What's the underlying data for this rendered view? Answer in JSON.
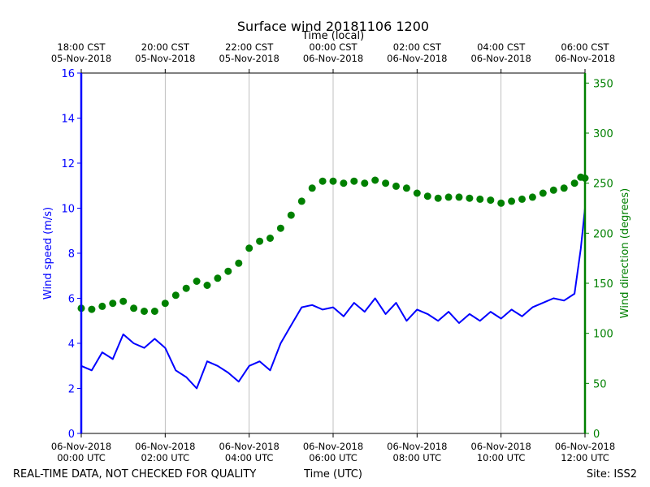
{
  "chart_data": {
    "type": "line",
    "title": "Surface wind 20181106 1200",
    "top_axis_label": "Time (local)",
    "xlabel": "Time (UTC)",
    "ylabel_left": "Wind speed (m/s)",
    "ylabel_right": "Wind direction (degrees)",
    "footer_left": "REAL-TIME DATA, NOT CHECKED FOR QUALITY",
    "footer_right": "Site: ISS2",
    "x_range_hours": [
      0,
      12
    ],
    "ylim_left": [
      0,
      16
    ],
    "ylim_right": [
      0,
      360
    ],
    "yticks_left": [
      "0",
      "2",
      "4",
      "6",
      "8",
      "10",
      "12",
      "14",
      "16"
    ],
    "yticks_right": [
      "0",
      "50",
      "100",
      "150",
      "200",
      "250",
      "300",
      "350"
    ],
    "xticks_bottom": [
      {
        "hour": 0,
        "line1": "06-Nov-2018",
        "line2": "00:00 UTC"
      },
      {
        "hour": 2,
        "line1": "06-Nov-2018",
        "line2": "02:00 UTC"
      },
      {
        "hour": 4,
        "line1": "06-Nov-2018",
        "line2": "04:00 UTC"
      },
      {
        "hour": 6,
        "line1": "06-Nov-2018",
        "line2": "06:00 UTC"
      },
      {
        "hour": 8,
        "line1": "06-Nov-2018",
        "line2": "08:00 UTC"
      },
      {
        "hour": 10,
        "line1": "06-Nov-2018",
        "line2": "10:00 UTC"
      },
      {
        "hour": 12,
        "line1": "06-Nov-2018",
        "line2": "12:00 UTC"
      }
    ],
    "xticks_top": [
      {
        "hour": 0,
        "line1": "18:00 CST",
        "line2": "05-Nov-2018"
      },
      {
        "hour": 2,
        "line1": "20:00 CST",
        "line2": "05-Nov-2018"
      },
      {
        "hour": 4,
        "line1": "22:00 CST",
        "line2": "05-Nov-2018"
      },
      {
        "hour": 6,
        "line1": "00:00 CST",
        "line2": "06-Nov-2018"
      },
      {
        "hour": 8,
        "line1": "02:00 CST",
        "line2": "06-Nov-2018"
      },
      {
        "hour": 10,
        "line1": "04:00 CST",
        "line2": "06-Nov-2018"
      },
      {
        "hour": 12,
        "line1": "06:00 CST",
        "line2": "06-Nov-2018"
      }
    ],
    "series": [
      {
        "name": "Wind speed (m/s)",
        "axis": "left",
        "style": "line",
        "color": "#0000ff",
        "hours": [
          0,
          0.25,
          0.5,
          0.75,
          1,
          1.25,
          1.5,
          1.75,
          2,
          2.25,
          2.5,
          2.75,
          3,
          3.25,
          3.5,
          3.75,
          4,
          4.25,
          4.5,
          4.75,
          5,
          5.25,
          5.5,
          5.75,
          6,
          6.25,
          6.5,
          6.75,
          7,
          7.25,
          7.5,
          7.75,
          8,
          8.25,
          8.5,
          8.75,
          9,
          9.25,
          9.5,
          9.75,
          10,
          10.25,
          10.5,
          10.75,
          11,
          11.25,
          11.5,
          11.75,
          11.9,
          12
        ],
        "values": [
          3.0,
          2.8,
          3.6,
          3.3,
          4.4,
          4.0,
          3.8,
          4.2,
          3.8,
          2.8,
          2.5,
          2.0,
          3.2,
          3.0,
          2.7,
          2.3,
          3.0,
          3.2,
          2.8,
          4.0,
          4.8,
          5.6,
          5.7,
          5.5,
          5.6,
          5.2,
          5.8,
          5.4,
          6.0,
          5.3,
          5.8,
          5.0,
          5.5,
          5.3,
          5.0,
          5.4,
          4.9,
          5.3,
          5.0,
          5.4,
          5.1,
          5.5,
          5.2,
          5.6,
          5.8,
          6.0,
          5.9,
          6.2,
          8.2,
          10.0
        ]
      },
      {
        "name": "Wind direction (degrees)",
        "axis": "right",
        "style": "dots",
        "color": "#008000",
        "hours": [
          0,
          0.25,
          0.5,
          0.75,
          1,
          1.25,
          1.5,
          1.75,
          2,
          2.25,
          2.5,
          2.75,
          3,
          3.25,
          3.5,
          3.75,
          4,
          4.25,
          4.5,
          4.75,
          5,
          5.25,
          5.5,
          5.75,
          6,
          6.25,
          6.5,
          6.75,
          7,
          7.25,
          7.5,
          7.75,
          8,
          8.25,
          8.5,
          8.75,
          9,
          9.25,
          9.5,
          9.75,
          10,
          10.25,
          10.5,
          10.75,
          11,
          11.25,
          11.5,
          11.75,
          11.9,
          12
        ],
        "values": [
          125,
          124,
          127,
          130,
          132,
          125,
          122,
          122,
          130,
          138,
          145,
          152,
          148,
          155,
          162,
          170,
          185,
          192,
          195,
          205,
          218,
          232,
          245,
          252,
          252,
          250,
          252,
          250,
          253,
          250,
          247,
          245,
          240,
          237,
          235,
          236,
          236,
          235,
          234,
          233,
          230,
          232,
          234,
          236,
          240,
          243,
          245,
          250,
          256,
          255
        ]
      }
    ]
  }
}
